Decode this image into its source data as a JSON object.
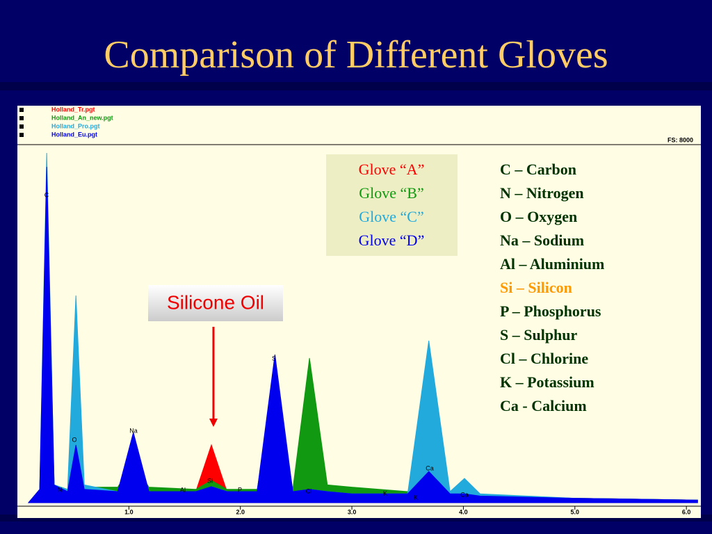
{
  "title": "Comparison of Different Gloves",
  "chart_data": {
    "type": "area",
    "x": [
      0.1,
      0.2,
      0.263,
      0.33,
      0.45,
      0.525,
      0.6,
      0.9,
      1.04,
      1.18,
      1.6,
      1.74,
      1.88,
      2.15,
      2.31,
      2.47,
      2.62,
      2.78,
      3.0,
      3.5,
      3.69,
      3.88,
      4.01,
      4.15,
      5.0,
      6.1
    ],
    "series": [
      {
        "name": "Holland_Tr.pgt",
        "color": "#ff0000",
        "values": [
          0,
          300,
          5973,
          400,
          250,
          1300,
          300,
          200,
          1000,
          250,
          250,
          1294,
          250,
          250,
          3000,
          250,
          350,
          250,
          200,
          200,
          600,
          200,
          200,
          150,
          100,
          60
        ]
      },
      {
        "name": "Holland_An_new.pgt",
        "color": "#119911",
        "values": [
          0,
          300,
          5500,
          400,
          300,
          1500,
          350,
          350,
          900,
          350,
          300,
          500,
          300,
          300,
          2500,
          300,
          3244,
          400,
          350,
          250,
          500,
          200,
          200,
          150,
          100,
          60
        ]
      },
      {
        "name": "Holland_Pro.pgt",
        "color": "#22aadd",
        "values": [
          0,
          300,
          7844,
          400,
          300,
          4647,
          400,
          250,
          650,
          250,
          250,
          360,
          250,
          250,
          3200,
          250,
          300,
          250,
          200,
          200,
          3634,
          250,
          545,
          200,
          100,
          60
        ]
      },
      {
        "name": "Holland_Eu.pgt",
        "color": "#0000ee",
        "values": [
          0,
          300,
          7532,
          400,
          250,
          1294,
          300,
          250,
          1575,
          250,
          250,
          360,
          250,
          250,
          3322,
          250,
          300,
          250,
          200,
          200,
          700,
          200,
          200,
          150,
          100,
          60
        ]
      }
    ],
    "xlim": [
      0,
      6.13
    ],
    "ylim": [
      0,
      8000
    ],
    "xticks": [
      {
        "value": 1,
        "label": "1.0"
      },
      {
        "value": 2,
        "label": "2.0"
      },
      {
        "value": 3,
        "label": "3.0"
      },
      {
        "value": 4,
        "label": "4.0"
      },
      {
        "value": 5,
        "label": "5.0"
      },
      {
        "value": 6,
        "label": "6.0"
      }
    ],
    "full_scale_label": "FS:  8000",
    "peak_labels": [
      "C",
      "O",
      "N",
      "Na",
      "Al",
      "Si",
      "P",
      "S",
      "Cl",
      "K",
      "K",
      "Ca",
      "Ca"
    ],
    "callout": "Silicone Oil",
    "glove_key": [
      "Glove “A”",
      "Glove “B”",
      "Glove “C”",
      "Glove “D”"
    ],
    "element_key": [
      "C – Carbon",
      "N – Nitrogen",
      "O – Oxygen",
      "Na – Sodium",
      "Al – Aluminium",
      "Si – Silicon",
      "P – Phosphorus",
      "S – Sulphur",
      "Cl – Chlorine",
      "K – Potassium",
      "Ca - Calcium"
    ],
    "highlight_color": "#ff9900"
  }
}
